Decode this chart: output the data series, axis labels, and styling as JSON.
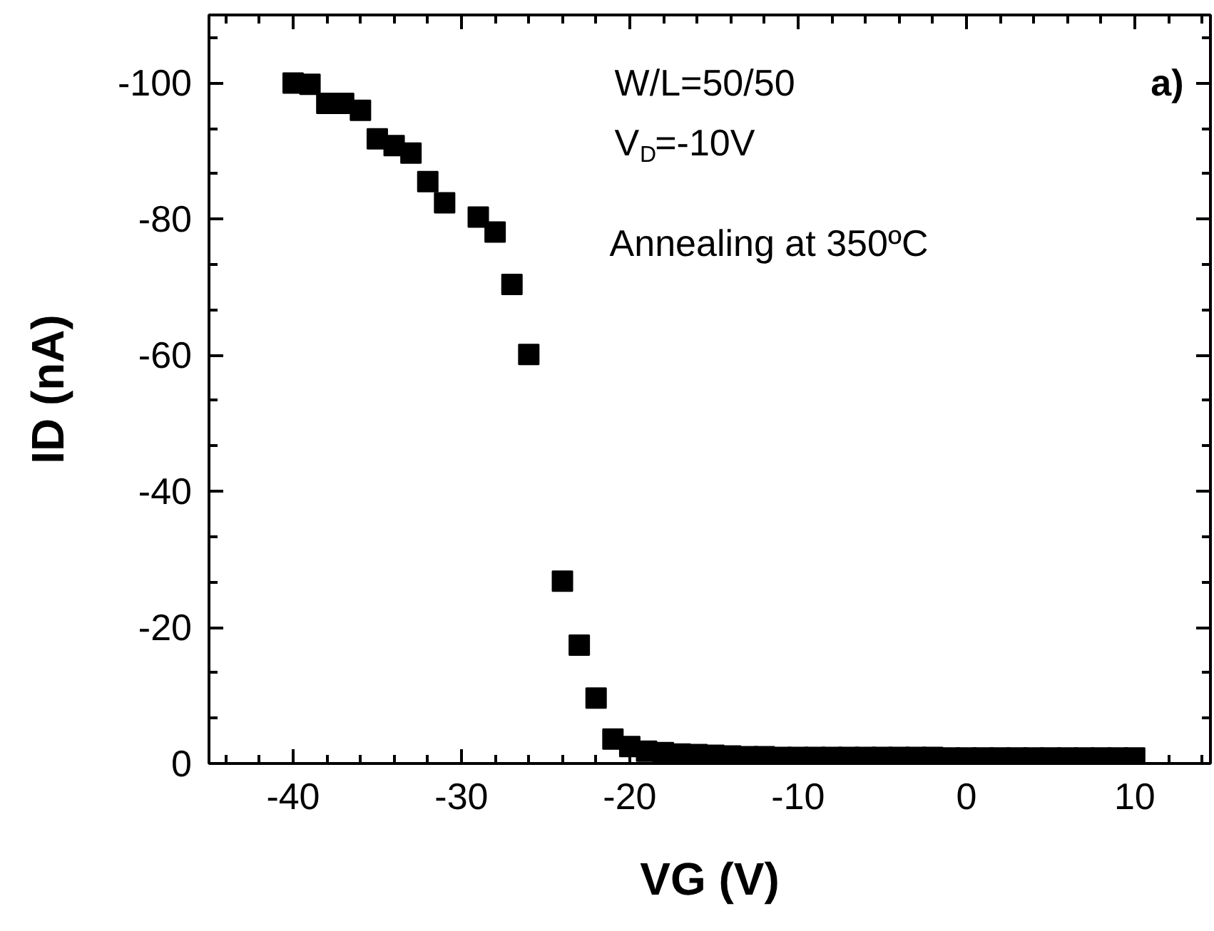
{
  "chart_data": {
    "type": "scatter",
    "xlabel": "VG (V)",
    "ylabel": "ID (nA)",
    "annotations": [
      "W/L=50/50",
      "V$_{D}$=-10V",
      "Annealing at 350ºC",
      "a)"
    ],
    "x": [
      -40,
      -39,
      -38,
      -37,
      -36,
      -35,
      -34,
      -33,
      -32,
      -31,
      -29,
      -28,
      -27,
      -26,
      -24,
      -23,
      -22,
      -21,
      -20,
      -19,
      -18,
      -17,
      -16,
      -15,
      -14,
      -13,
      -12,
      -11,
      -10,
      -9,
      -8,
      -7,
      -6,
      -5,
      -4,
      -3,
      -2,
      -1,
      0,
      1,
      2,
      3,
      4,
      5,
      6,
      7,
      8,
      9,
      10
    ],
    "series": [
      {
        "color": "#000000",
        "values": [
          -100,
          -99.8,
          -97,
          -97,
          -96,
          -91.8,
          -90.8,
          -89.7,
          -85.5,
          -82.4,
          -80.3,
          -78.1,
          -70.4,
          -60.1,
          -26.8,
          -17.4,
          -9.6,
          -3.6,
          -2.5,
          -1.8,
          -1.6,
          -1.4,
          -1.3,
          -1.2,
          -1.1,
          -1.0,
          -1.0,
          -0.9,
          -0.9,
          -0.9,
          -0.9,
          -0.9,
          -0.9,
          -0.9,
          -0.9,
          -0.9,
          -0.9,
          -0.8,
          -0.8,
          -0.8,
          -0.8,
          -0.8,
          -0.8,
          -0.8,
          -0.8,
          -0.8,
          -0.8,
          -0.8,
          -0.8
        ]
      }
    ],
    "xlim": [
      -45,
      14.5
    ],
    "ylim": [
      0,
      -110
    ],
    "xticks": [
      -40,
      -30,
      -20,
      -10,
      0,
      10
    ],
    "yticks": [
      0,
      -20,
      -40,
      -60,
      -80,
      -100
    ],
    "marker": "square",
    "grid": false
  }
}
